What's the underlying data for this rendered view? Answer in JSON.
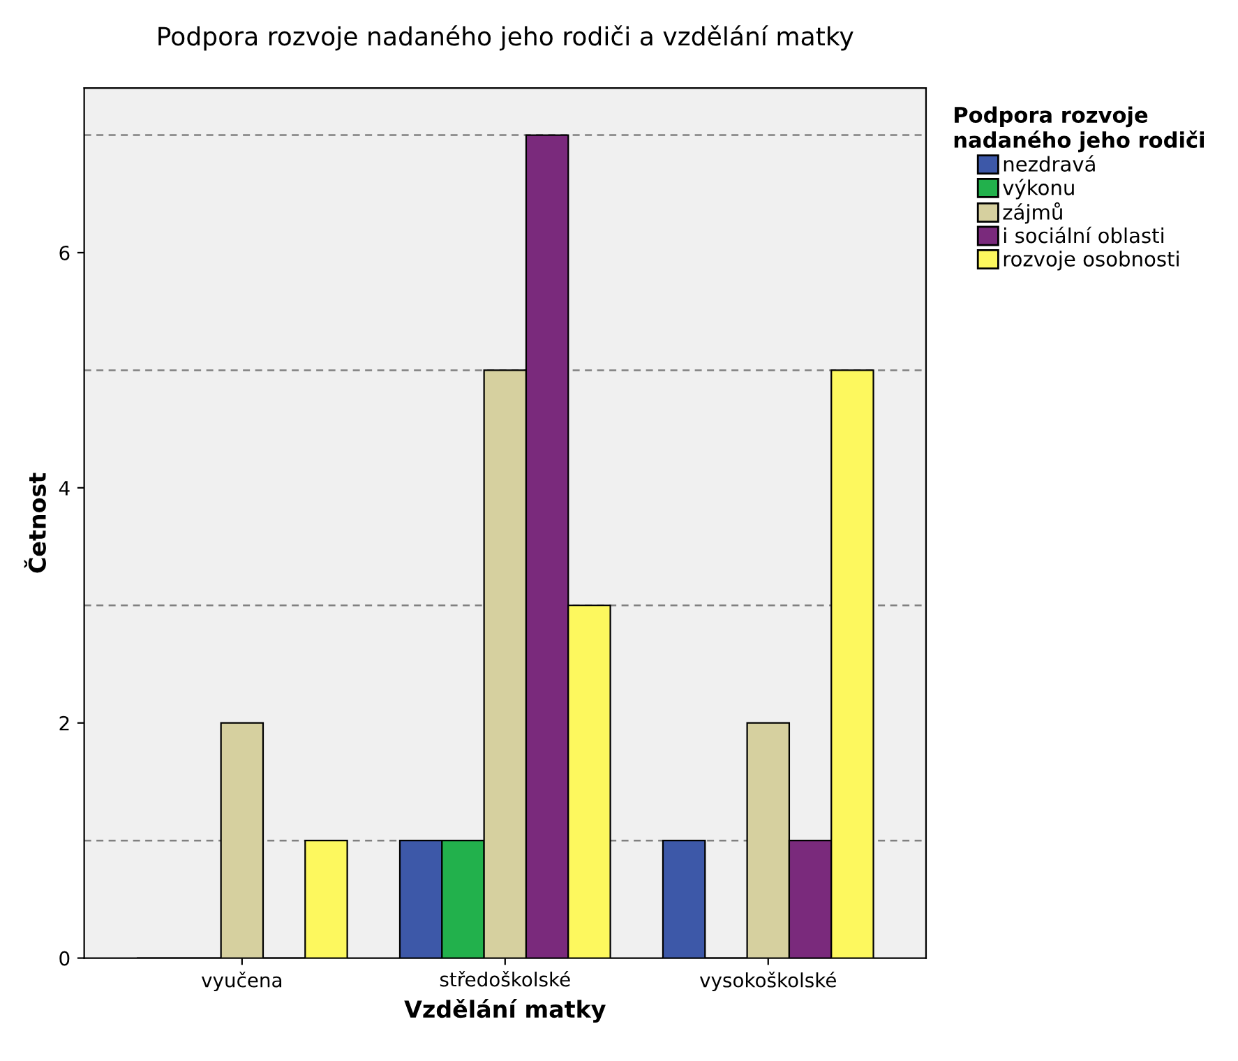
{
  "chart_data": {
    "type": "bar",
    "title": "Podpora rozvoje nadaného jeho rodiči a vzdělání matky",
    "xlabel": "Vzdělání matky",
    "ylabel": "Četnost",
    "legend_title": "Podpora rozvoje\nnadaného jeho rodiči",
    "categories": [
      "vyučena",
      "středoškolské",
      "vysokoškolské"
    ],
    "series": [
      {
        "name": "nezdravá",
        "color": "#3d58a8",
        "values": [
          0,
          1,
          1
        ]
      },
      {
        "name": "výkonu",
        "color": "#22b14c",
        "values": [
          0,
          1,
          0
        ]
      },
      {
        "name": "zájmů",
        "color": "#d6d09f",
        "values": [
          2,
          5,
          2
        ]
      },
      {
        "name": "i sociální oblasti",
        "color": "#7a2a7c",
        "values": [
          0,
          7,
          1
        ]
      },
      {
        "name": "rozvoje osobnosti",
        "color": "#fdf85e",
        "values": [
          1,
          3,
          5
        ]
      }
    ],
    "ylim": [
      0,
      7.4
    ],
    "yticks": [
      0,
      2,
      4,
      6
    ],
    "ref_lines": [
      {
        "axis": "y",
        "value": 1,
        "color": "#808080",
        "line_style": "dashed"
      },
      {
        "axis": "y",
        "value": 3,
        "color": "#808080",
        "line_style": "dashed"
      },
      {
        "axis": "y",
        "value": 5,
        "color": "#808080",
        "line_style": "dashed"
      },
      {
        "axis": "y",
        "value": 7,
        "color": "#808080",
        "line_style": "dashed"
      }
    ],
    "grid": false,
    "legend": "top right"
  }
}
